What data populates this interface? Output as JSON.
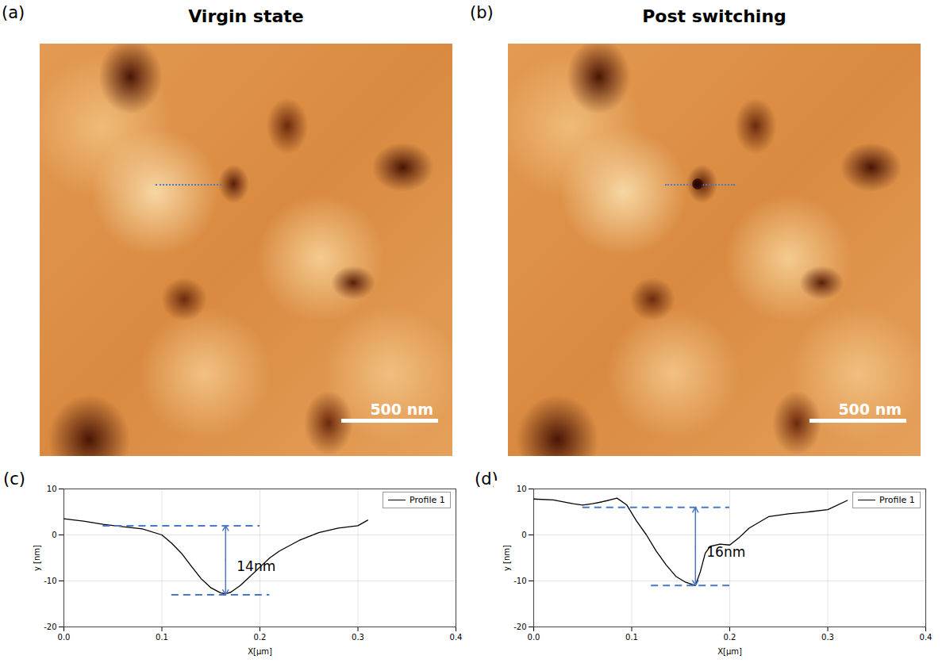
{
  "panels": [
    {
      "letter": "(a)",
      "title": "Virgin state",
      "scale_bar": "500 nm"
    },
    {
      "letter": "(b)",
      "title": "Post switching",
      "scale_bar": "500 nm"
    }
  ],
  "chart_data": [
    {
      "type": "line",
      "panel": "(c)",
      "x_label": "X[µm]",
      "y_label": "y [nm]",
      "xlim": [
        0,
        0.4
      ],
      "ylim": [
        -20,
        10
      ],
      "xticks": [
        {
          "value": 0,
          "label": "0.0"
        },
        0.1,
        0.2,
        0.3,
        0.4
      ],
      "yticks": [
        -20,
        -10,
        0,
        10
      ],
      "grid": true,
      "legend": "top-right",
      "series": [
        {
          "name": "Profile 1",
          "color": "#000000",
          "x": [
            0,
            0.02,
            0.04,
            0.06,
            0.08,
            0.1,
            0.11,
            0.12,
            0.13,
            0.14,
            0.15,
            0.16,
            0.165,
            0.17,
            0.18,
            0.19,
            0.2,
            0.21,
            0.22,
            0.24,
            0.26,
            0.28,
            0.3,
            0.31
          ],
          "values": [
            3.5,
            3,
            2.3,
            1.8,
            1.3,
            0,
            -1.8,
            -4,
            -6.8,
            -9.5,
            -11.5,
            -12.6,
            -12.8,
            -12.5,
            -11,
            -9,
            -7,
            -5,
            -3.5,
            -1.2,
            0.5,
            1.5,
            2,
            3.2
          ]
        }
      ],
      "annotation": {
        "text": "14nm",
        "upper": 2,
        "lower": -13,
        "x": 0.165,
        "upper_span": [
          0.04,
          0.2
        ],
        "lower_span": [
          0.11,
          0.21
        ]
      }
    },
    {
      "type": "line",
      "panel": "(d)",
      "x_label": "X[µm]",
      "y_label": "y [nm]",
      "xlim": [
        0,
        0.4
      ],
      "ylim": [
        -20,
        10
      ],
      "xticks": [
        {
          "value": 0,
          "label": "0.0"
        },
        0.1,
        0.2,
        0.3,
        0.4
      ],
      "yticks": [
        -20,
        -10,
        0,
        10
      ],
      "grid": true,
      "legend": "top-right",
      "series": [
        {
          "name": "Profile 1",
          "color": "#000000",
          "x": [
            0,
            0.02,
            0.04,
            0.05,
            0.06,
            0.07,
            0.085,
            0.095,
            0.105,
            0.115,
            0.125,
            0.135,
            0.145,
            0.155,
            0.165,
            0.17,
            0.175,
            0.18,
            0.19,
            0.2,
            0.21,
            0.22,
            0.24,
            0.26,
            0.28,
            0.3,
            0.32
          ],
          "values": [
            7.8,
            7.6,
            6.8,
            6.5,
            6.8,
            7.2,
            8,
            6.5,
            3,
            0,
            -3.5,
            -6.5,
            -9,
            -10.3,
            -11,
            -8,
            -4,
            -2.5,
            -2,
            -2.2,
            -0.5,
            1.5,
            4,
            4.6,
            5,
            5.5,
            7.5
          ]
        }
      ],
      "annotation": {
        "text": "16nm",
        "upper": 6,
        "lower": -11,
        "x": 0.165,
        "upper_span": [
          0.05,
          0.2
        ],
        "lower_span": [
          0.12,
          0.2
        ]
      }
    }
  ]
}
